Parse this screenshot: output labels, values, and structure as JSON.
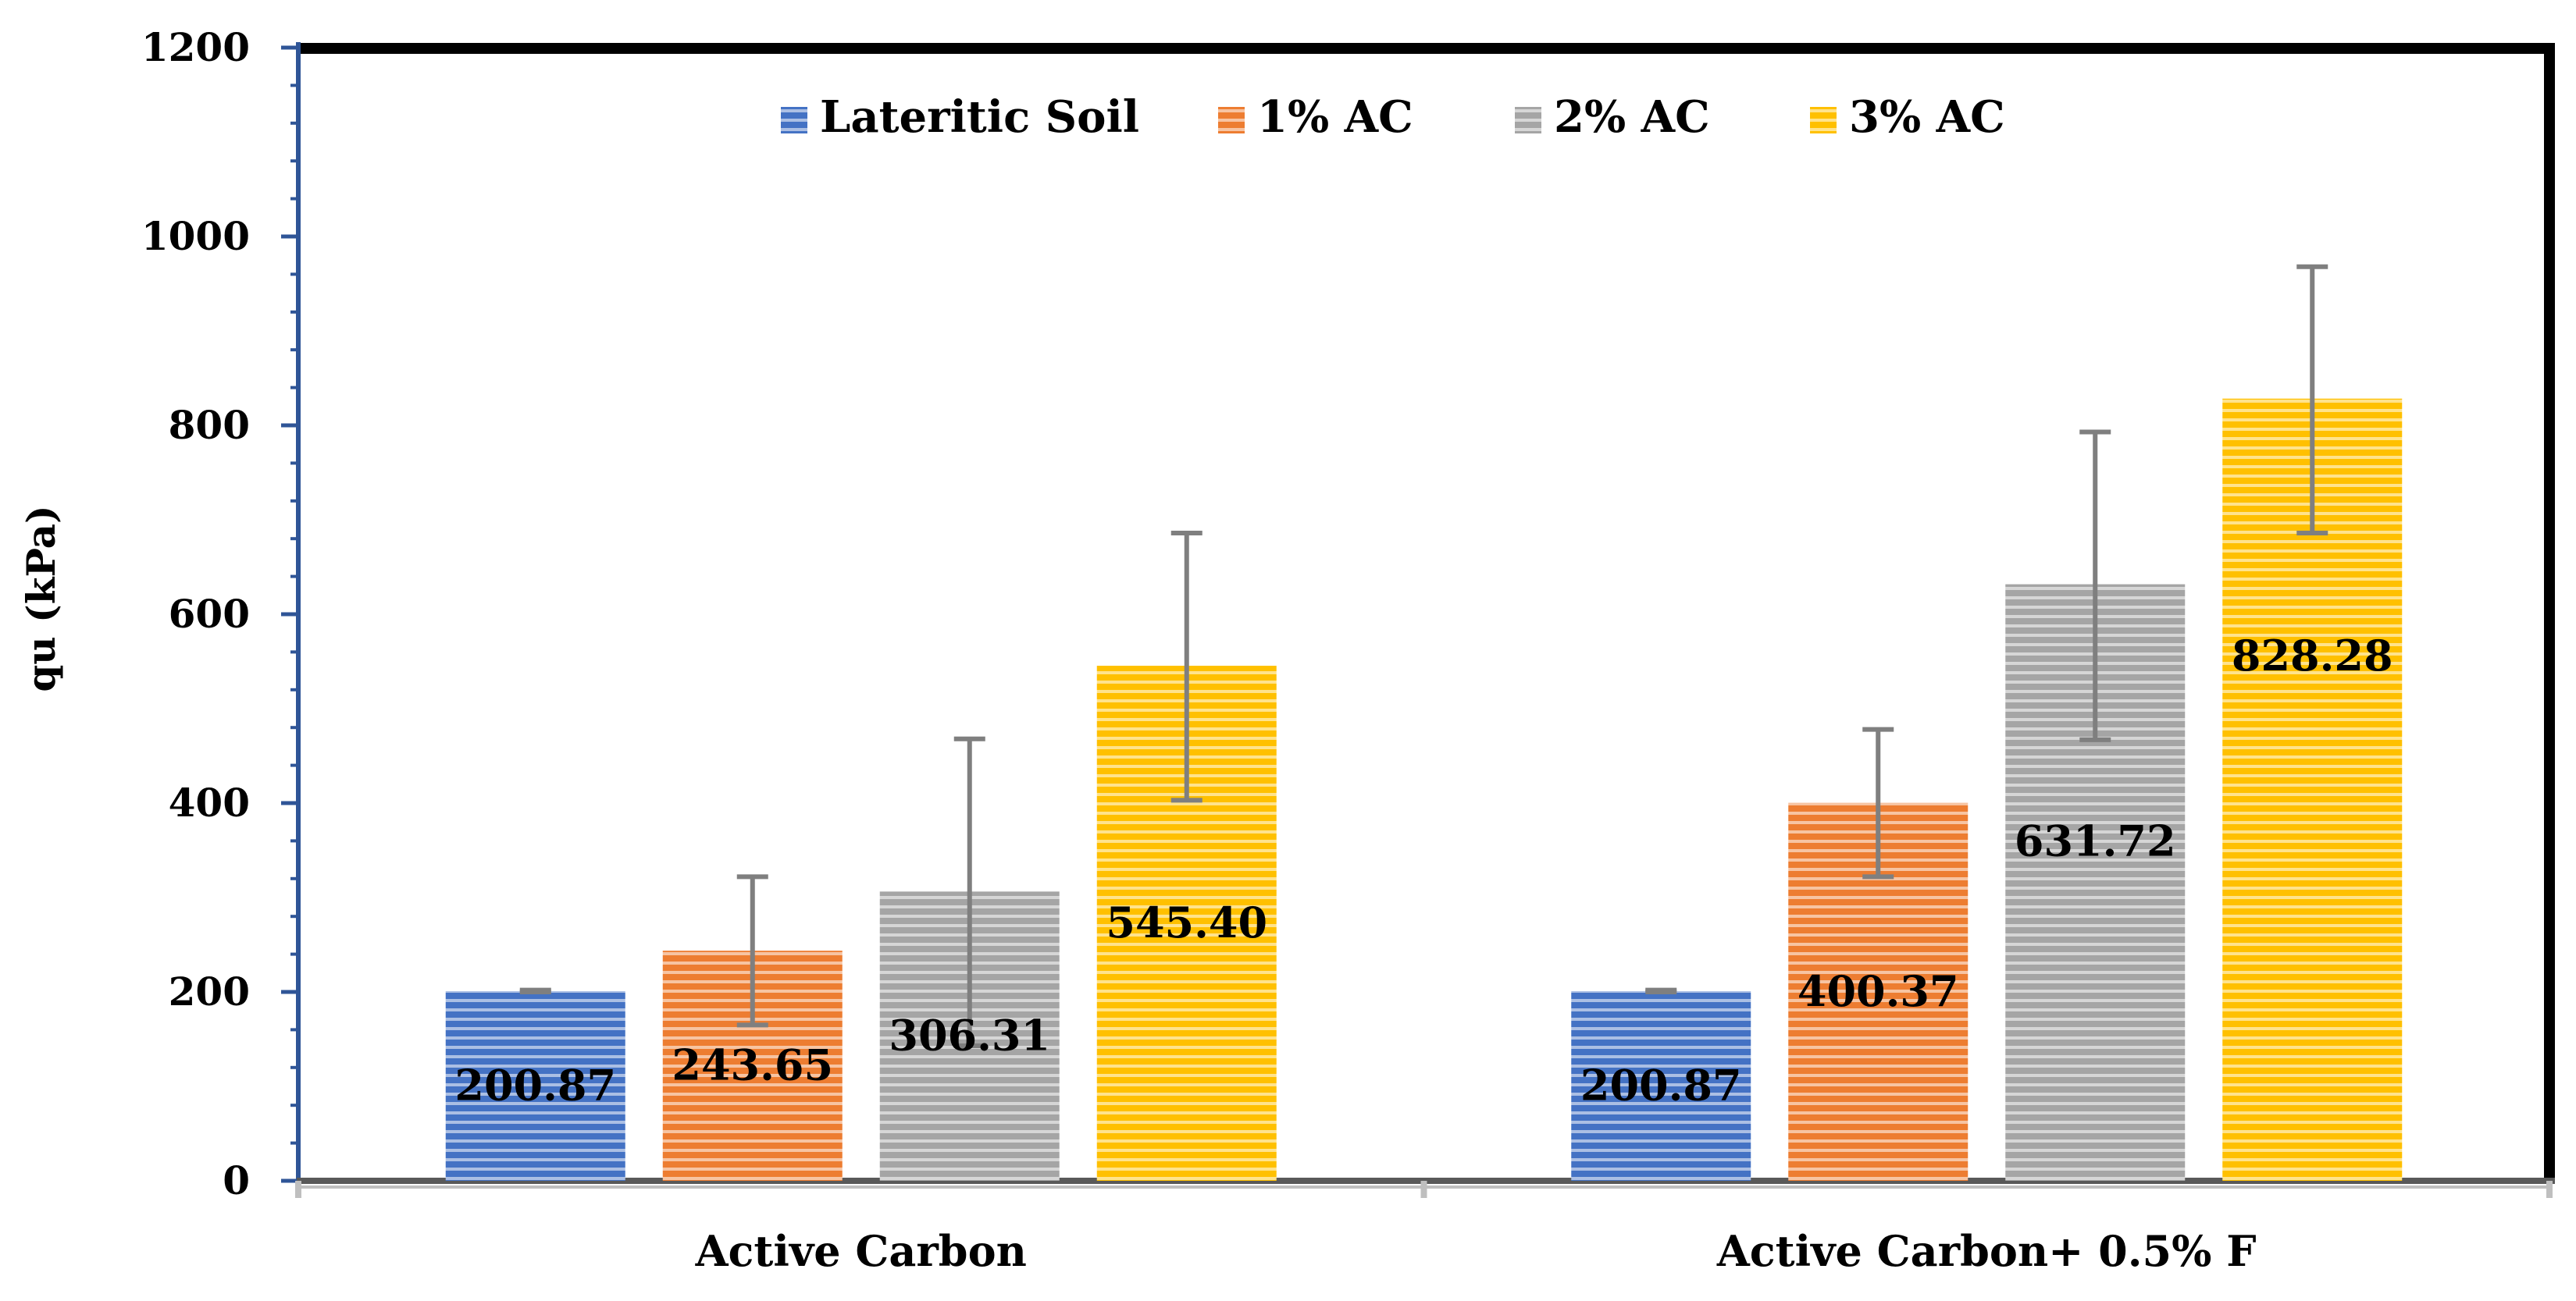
{
  "chart_data": {
    "type": "bar",
    "title": "",
    "xlabel": "",
    "ylabel": "qu (kPa)",
    "ylim": [
      0,
      1200
    ],
    "yticks": [
      "0",
      "200",
      "400",
      "600",
      "800",
      "1000",
      "1200"
    ],
    "ytick_values": [
      0,
      200,
      400,
      600,
      800,
      1000,
      1200
    ],
    "grid": false,
    "legend_position": "top-center",
    "categories": [
      "Active Carbon",
      "Active Carbon+ 0.5% F"
    ],
    "series": [
      {
        "name": "Lateritic Soil",
        "color": "#4472C4",
        "values": [
          200.87,
          200.87
        ],
        "labels": [
          "200.87",
          "200.87"
        ],
        "error_low": [
          200,
          200
        ],
        "error_high": [
          202,
          202
        ]
      },
      {
        "name": "1% AC",
        "color": "#ED7D31",
        "values": [
          243.65,
          400.37
        ],
        "labels": [
          "243.65",
          "400.37"
        ],
        "error_low": [
          165,
          322
        ],
        "error_high": [
          322,
          478
        ]
      },
      {
        "name": "2% AC",
        "color": "#A5A5A5",
        "values": [
          306.31,
          631.72
        ],
        "labels": [
          "306.31",
          "631.72"
        ],
        "error_low": [
          143,
          467
        ],
        "error_high": [
          468,
          793
        ]
      },
      {
        "name": "3% AC",
        "color": "#FFC000",
        "values": [
          545.4,
          828.28
        ],
        "labels": [
          "545.40",
          "828.28"
        ],
        "error_low": [
          403,
          686
        ],
        "error_high": [
          686,
          968
        ]
      }
    ]
  }
}
